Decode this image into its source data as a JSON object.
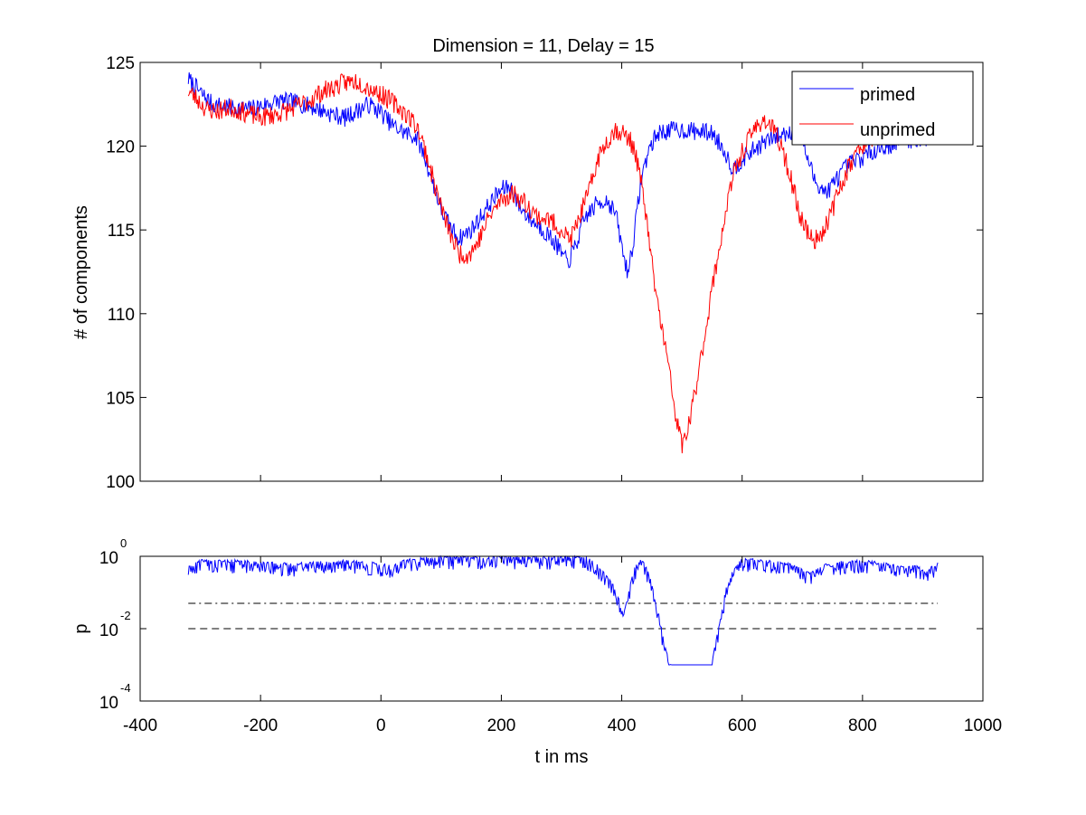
{
  "chart_data": [
    {
      "type": "line",
      "title": "Dimension  = 11, Delay = 15",
      "xlabel": "",
      "ylabel": "# of components",
      "xlim": [
        -400,
        1000
      ],
      "ylim": [
        100,
        125
      ],
      "yticks": [
        "100",
        "105",
        "110",
        "115",
        "120",
        "125"
      ],
      "ytick_values": [
        100,
        105,
        110,
        115,
        120,
        125
      ],
      "xtick_values": [
        -400,
        -200,
        0,
        200,
        400,
        600,
        800,
        1000
      ],
      "x_range": [
        -320,
        925
      ],
      "legend_position": "top-right",
      "series": [
        {
          "name": "primed",
          "color": "#0000ff",
          "anchors": [
            [
              -320,
              124
            ],
            [
              -300,
              123.2
            ],
            [
              -280,
              122.5
            ],
            [
              -250,
              122.3
            ],
            [
              -220,
              122.2
            ],
            [
              -200,
              122.4
            ],
            [
              -170,
              122.7
            ],
            [
              -140,
              122.6
            ],
            [
              -110,
              122.3
            ],
            [
              -80,
              121.9
            ],
            [
              -60,
              121.7
            ],
            [
              -40,
              122.1
            ],
            [
              -20,
              122.5
            ],
            [
              0,
              122.0
            ],
            [
              20,
              121.2
            ],
            [
              40,
              120.8
            ],
            [
              60,
              120.5
            ],
            [
              70,
              119.6
            ],
            [
              85,
              118.0
            ],
            [
              100,
              116.2
            ],
            [
              115,
              115.2
            ],
            [
              130,
              114.5
            ],
            [
              150,
              115.0
            ],
            [
              170,
              116.0
            ],
            [
              190,
              117.0
            ],
            [
              200,
              117.4
            ],
            [
              215,
              117.6
            ],
            [
              230,
              116.4
            ],
            [
              250,
              115.6
            ],
            [
              270,
              115.0
            ],
            [
              290,
              114.2
            ],
            [
              310,
              113.0
            ],
            [
              325,
              114.2
            ],
            [
              340,
              115.8
            ],
            [
              360,
              116.6
            ],
            [
              375,
              116.8
            ],
            [
              390,
              116.0
            ],
            [
              400,
              114.0
            ],
            [
              410,
              112.4
            ],
            [
              420,
              114.5
            ],
            [
              432,
              118.0
            ],
            [
              445,
              119.8
            ],
            [
              460,
              120.8
            ],
            [
              490,
              121.0
            ],
            [
              520,
              120.9
            ],
            [
              550,
              120.8
            ],
            [
              570,
              119.8
            ],
            [
              585,
              118.6
            ],
            [
              600,
              119.2
            ],
            [
              620,
              119.8
            ],
            [
              640,
              120.3
            ],
            [
              660,
              120.6
            ],
            [
              680,
              120.9
            ],
            [
              700,
              120.3
            ],
            [
              720,
              118.0
            ],
            [
              740,
              117.2
            ],
            [
              760,
              118.2
            ],
            [
              780,
              119.0
            ],
            [
              800,
              119.3
            ],
            [
              820,
              119.8
            ],
            [
              840,
              120.0
            ],
            [
              870,
              120.4
            ],
            [
              900,
              120.4
            ],
            [
              925,
              120.6
            ]
          ],
          "noise": 0.55,
          "seed": 7
        },
        {
          "name": "unprimed",
          "color": "#ff0000",
          "anchors": [
            [
              -320,
              123.3
            ],
            [
              -305,
              122.8
            ],
            [
              -290,
              122.2
            ],
            [
              -270,
              122.1
            ],
            [
              -250,
              122.3
            ],
            [
              -225,
              122.0
            ],
            [
              -200,
              121.7
            ],
            [
              -175,
              121.9
            ],
            [
              -150,
              122.2
            ],
            [
              -120,
              122.7
            ],
            [
              -100,
              123.2
            ],
            [
              -80,
              123.5
            ],
            [
              -60,
              123.8
            ],
            [
              -40,
              123.9
            ],
            [
              -20,
              123.5
            ],
            [
              0,
              123.1
            ],
            [
              20,
              122.6
            ],
            [
              40,
              122.0
            ],
            [
              60,
              121.2
            ],
            [
              75,
              119.6
            ],
            [
              90,
              117.6
            ],
            [
              105,
              115.8
            ],
            [
              118,
              114.5
            ],
            [
              130,
              113.6
            ],
            [
              145,
              113.5
            ],
            [
              160,
              114.2
            ],
            [
              180,
              115.8
            ],
            [
              200,
              116.8
            ],
            [
              220,
              117.2
            ],
            [
              240,
              116.6
            ],
            [
              260,
              115.8
            ],
            [
              280,
              115.6
            ],
            [
              300,
              115.0
            ],
            [
              315,
              114.4
            ],
            [
              330,
              115.8
            ],
            [
              345,
              117.2
            ],
            [
              360,
              119.2
            ],
            [
              375,
              120.3
            ],
            [
              390,
              121.0
            ],
            [
              405,
              120.7
            ],
            [
              420,
              120.0
            ],
            [
              430,
              118.3
            ],
            [
              440,
              116.0
            ],
            [
              450,
              113.0
            ],
            [
              460,
              110.5
            ],
            [
              470,
              108.5
            ],
            [
              480,
              106.3
            ],
            [
              490,
              103.8
            ],
            [
              500,
              102.2
            ],
            [
              508,
              102.8
            ],
            [
              518,
              104.5
            ],
            [
              530,
              107.0
            ],
            [
              540,
              109.2
            ],
            [
              550,
              111.5
            ],
            [
              560,
              113.5
            ],
            [
              570,
              115.5
            ],
            [
              580,
              117.4
            ],
            [
              590,
              118.8
            ],
            [
              605,
              120.0
            ],
            [
              620,
              121.0
            ],
            [
              635,
              121.6
            ],
            [
              650,
              121.1
            ],
            [
              665,
              120.0
            ],
            [
              680,
              118.2
            ],
            [
              695,
              116.0
            ],
            [
              710,
              114.8
            ],
            [
              720,
              114.3
            ],
            [
              735,
              115.0
            ],
            [
              750,
              116.2
            ],
            [
              765,
              117.8
            ],
            [
              780,
              119.0
            ],
            [
              800,
              120.1
            ],
            [
              820,
              120.7
            ],
            [
              840,
              120.9
            ]
          ],
          "noise": 0.6,
          "seed": 23
        }
      ]
    },
    {
      "type": "line",
      "title": "",
      "xlabel": "t in ms",
      "ylabel": "p",
      "xlim": [
        -400,
        1000
      ],
      "ylim": [
        0.0001,
        1
      ],
      "yscale": "log",
      "xticks": [
        "-400",
        "-200",
        "0",
        "200",
        "400",
        "600",
        "800",
        "1000"
      ],
      "xtick_values": [
        -400,
        -200,
        0,
        200,
        400,
        600,
        800,
        1000
      ],
      "yticks": [
        {
          "base": "10",
          "exp": "0"
        },
        {
          "base": "10",
          "exp": "-2"
        },
        {
          "base": "10",
          "exp": "-4"
        }
      ],
      "ytick_values": [
        1,
        0.01,
        0.0001
      ],
      "reference_lines": [
        {
          "style": "dash-dot",
          "y": 0.05,
          "x": [
            -320,
            925
          ]
        },
        {
          "style": "dashed",
          "y": 0.01,
          "x": [
            -320,
            925
          ]
        }
      ],
      "series": [
        {
          "name": "",
          "color": "#0000ff",
          "floor": 0.001,
          "anchors_log10": [
            [
              -320,
              -0.35
            ],
            [
              -300,
              -0.15
            ],
            [
              -250,
              -0.15
            ],
            [
              -200,
              -0.2
            ],
            [
              -150,
              -0.25
            ],
            [
              -100,
              -0.2
            ],
            [
              -50,
              -0.15
            ],
            [
              0,
              -0.25
            ],
            [
              20,
              -0.3
            ],
            [
              40,
              -0.15
            ],
            [
              60,
              -0.1
            ],
            [
              100,
              -0.05
            ],
            [
              150,
              -0.05
            ],
            [
              200,
              -0.05
            ],
            [
              250,
              -0.05
            ],
            [
              300,
              -0.05
            ],
            [
              340,
              -0.05
            ],
            [
              355,
              -0.2
            ],
            [
              370,
              -0.5
            ],
            [
              385,
              -0.8
            ],
            [
              395,
              -1.2
            ],
            [
              403,
              -1.7
            ],
            [
              410,
              -1.1
            ],
            [
              420,
              -0.4
            ],
            [
              430,
              -0.1
            ],
            [
              440,
              -0.3
            ],
            [
              450,
              -0.8
            ],
            [
              460,
              -1.5
            ],
            [
              470,
              -2.4
            ],
            [
              480,
              -3.0
            ],
            [
              490,
              -3.2
            ],
            [
              520,
              -3.2
            ],
            [
              540,
              -3.2
            ],
            [
              550,
              -3.0
            ],
            [
              556,
              -2.4
            ],
            [
              565,
              -1.7
            ],
            [
              572,
              -1.0
            ],
            [
              580,
              -0.6
            ],
            [
              590,
              -0.3
            ],
            [
              600,
              -0.1
            ],
            [
              630,
              -0.15
            ],
            [
              660,
              -0.2
            ],
            [
              690,
              -0.3
            ],
            [
              710,
              -0.5
            ],
            [
              730,
              -0.3
            ],
            [
              760,
              -0.2
            ],
            [
              800,
              -0.15
            ],
            [
              840,
              -0.25
            ],
            [
              870,
              -0.35
            ],
            [
              890,
              -0.3
            ],
            [
              905,
              -0.5
            ],
            [
              915,
              -0.3
            ],
            [
              925,
              -0.2
            ]
          ],
          "noise": 0.32,
          "seed": 41
        }
      ]
    }
  ]
}
